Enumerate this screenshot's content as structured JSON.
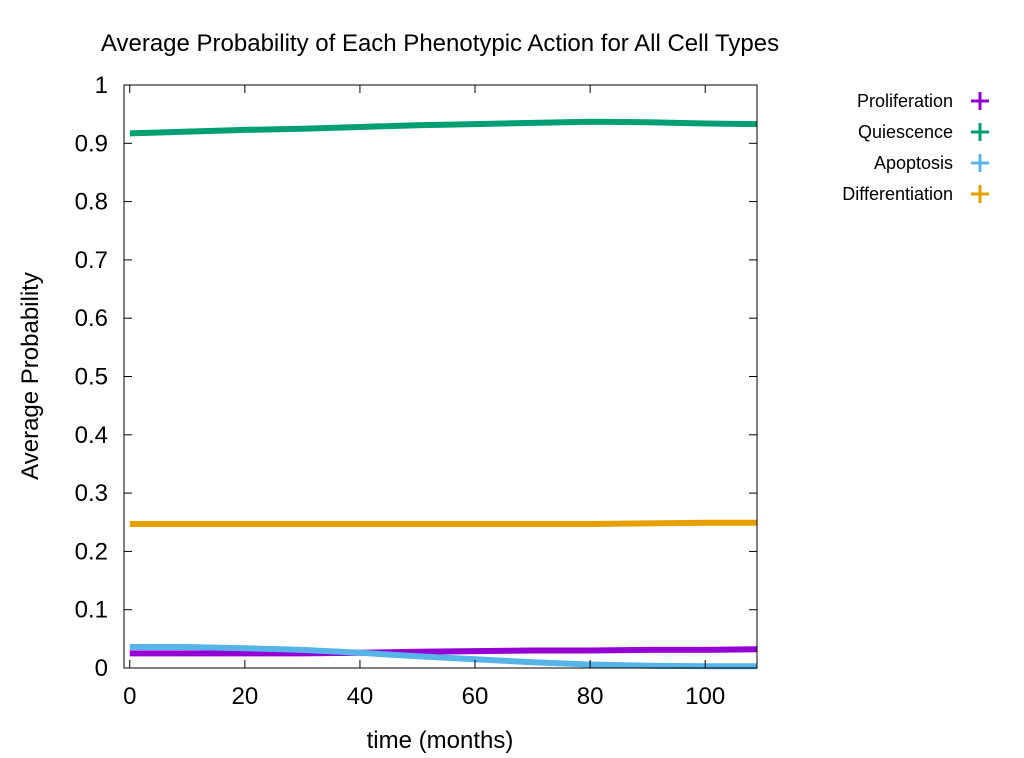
{
  "chart_data": {
    "type": "line",
    "title": "Average Probability of Each Phenotypic Action for All Cell Types",
    "xlabel": "time (months)",
    "ylabel": "Average Probability",
    "xlim": [
      -1,
      109
    ],
    "ylim": [
      0,
      1
    ],
    "xticks": [
      0,
      20,
      40,
      60,
      80,
      100
    ],
    "xtick_labels": [
      "0",
      "20",
      "40",
      "60",
      "80",
      "100"
    ],
    "yticks": [
      0,
      0.1,
      0.2,
      0.3,
      0.4,
      0.5,
      0.6,
      0.7,
      0.8,
      0.9,
      1
    ],
    "ytick_labels": [
      "0",
      "0.1",
      "0.2",
      "0.3",
      "0.4",
      "0.5",
      "0.6",
      "0.7",
      "0.8",
      "0.9",
      "1"
    ],
    "grid": false,
    "legend_position": "outside top-right",
    "x": [
      0,
      10,
      20,
      30,
      40,
      50,
      60,
      70,
      80,
      90,
      100,
      109
    ],
    "series": [
      {
        "name": "Proliferation",
        "color": "#9400d3",
        "values": [
          0.025,
          0.025,
          0.025,
          0.025,
          0.026,
          0.028,
          0.029,
          0.03,
          0.03,
          0.031,
          0.031,
          0.032
        ]
      },
      {
        "name": "Quiescence",
        "color": "#009e73",
        "values": [
          0.917,
          0.92,
          0.923,
          0.925,
          0.928,
          0.931,
          0.933,
          0.935,
          0.937,
          0.936,
          0.934,
          0.933
        ]
      },
      {
        "name": "Apoptosis",
        "color": "#56b4e9",
        "values": [
          0.036,
          0.036,
          0.034,
          0.031,
          0.026,
          0.02,
          0.015,
          0.01,
          0.006,
          0.004,
          0.003,
          0.003
        ]
      },
      {
        "name": "Differentiation",
        "color": "#e69f00",
        "values": [
          0.247,
          0.247,
          0.247,
          0.247,
          0.247,
          0.247,
          0.247,
          0.247,
          0.247,
          0.248,
          0.249,
          0.249
        ]
      }
    ]
  }
}
